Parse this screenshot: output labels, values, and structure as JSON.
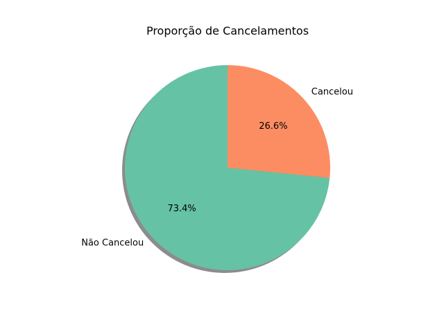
{
  "chart_data": {
    "type": "pie",
    "title": "Proporção de Cancelamentos",
    "categories": [
      "Não Cancelou",
      "Cancelou"
    ],
    "values": [
      73.4,
      26.6
    ],
    "value_labels": [
      "73.4%",
      "26.6%"
    ],
    "colors": [
      "#66c2a5",
      "#fc8d62"
    ],
    "start_angle_deg": 90,
    "direction": "counterclockwise",
    "shadow": true,
    "legend": "none"
  }
}
